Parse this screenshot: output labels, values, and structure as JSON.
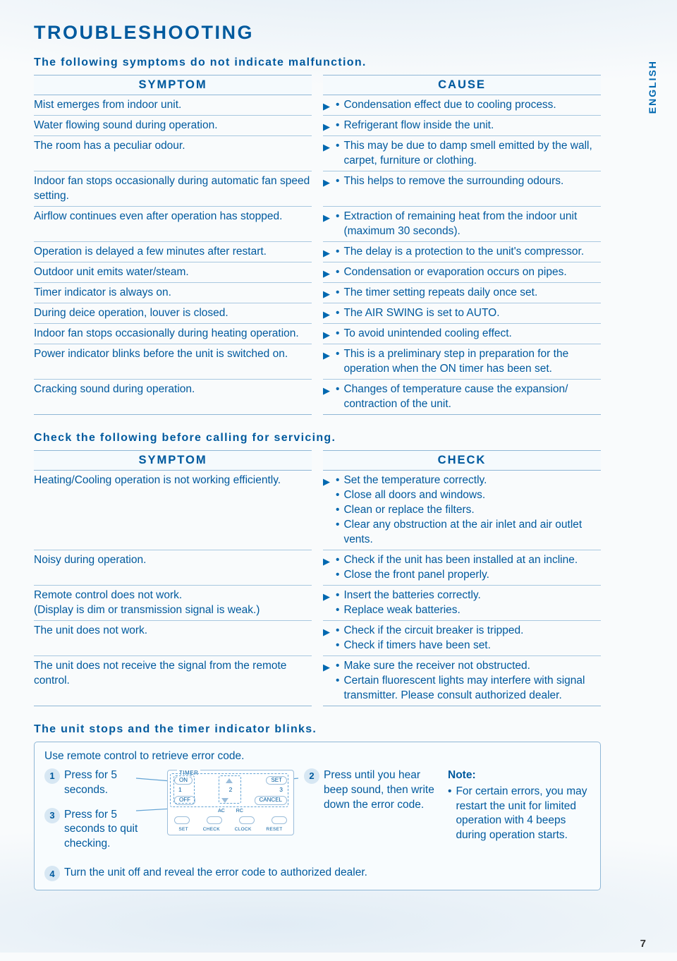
{
  "page": {
    "title": "TROUBLESHOOTING",
    "lang_tab": "ENGLISH",
    "page_number": "7"
  },
  "section1": {
    "subhead": "The following symptoms do not indicate malfunction.",
    "left_header": "SYMPTOM",
    "right_header": "CAUSE",
    "rows": [
      {
        "symptom": "Mist emerges from indoor unit.",
        "causes": [
          "Condensation effect due to cooling process."
        ]
      },
      {
        "symptom": "Water flowing sound during operation.",
        "causes": [
          "Refrigerant flow inside the unit."
        ]
      },
      {
        "symptom": "The room has a peculiar odour.",
        "causes": [
          "This may be due to damp smell emitted by the wall, carpet, furniture or clothing."
        ]
      },
      {
        "symptom": "Indoor fan stops occasionally during automatic fan speed setting.",
        "causes": [
          "This helps to remove the surrounding odours."
        ]
      },
      {
        "symptom": "Airflow continues even after operation has stopped.",
        "causes": [
          "Extraction of remaining heat from the indoor unit (maximum 30 seconds)."
        ]
      },
      {
        "symptom": "Operation is delayed a few minutes after restart.",
        "causes": [
          "The delay is a protection to the unit's compressor."
        ]
      },
      {
        "symptom": "Outdoor unit emits water/steam.",
        "causes": [
          "Condensation or evaporation occurs on pipes."
        ]
      },
      {
        "symptom": "Timer indicator is always on.",
        "causes": [
          "The timer setting repeats daily once set."
        ]
      },
      {
        "symptom": "During deice operation, louver is closed.",
        "causes": [
          "The AIR SWING is set to AUTO."
        ]
      },
      {
        "symptom": "Indoor fan stops occasionally during heating operation.",
        "causes": [
          "To avoid unintended cooling effect."
        ]
      },
      {
        "symptom": "Power indicator blinks before the unit is switched on.",
        "causes": [
          "This is a preliminary step in preparation for the operation when the ON timer has been set."
        ]
      },
      {
        "symptom": "Cracking sound during operation.",
        "causes": [
          "Changes of temperature cause the expansion/ contraction of the unit."
        ]
      }
    ]
  },
  "section2": {
    "subhead": "Check the following before calling for servicing.",
    "left_header": "SYMPTOM",
    "right_header": "CHECK",
    "rows": [
      {
        "symptom": "Heating/Cooling operation is not working efficiently.",
        "checks": [
          "Set the temperature correctly.",
          "Close all doors and windows.",
          "Clean or replace the filters.",
          "Clear any obstruction at the air inlet and air outlet vents."
        ]
      },
      {
        "symptom": "Noisy during operation.",
        "checks": [
          "Check if the unit has been installed at an incline.",
          "Close the front panel properly."
        ]
      },
      {
        "symptom": "Remote control does not work.\n(Display is dim or transmission signal is weak.)",
        "checks": [
          "Insert the batteries correctly.",
          "Replace weak batteries."
        ]
      },
      {
        "symptom": "The unit does not work.",
        "checks": [
          "Check if the circuit breaker is tripped.",
          "Check if timers have been set."
        ]
      },
      {
        "symptom": "The unit does not receive the signal from the remote control.",
        "checks": [
          "Make sure the receiver not obstructed.",
          "Certain fluorescent lights may interfere with signal transmitter. Please consult authorized dealer."
        ]
      }
    ]
  },
  "section3": {
    "subhead": "The unit stops and the timer indicator blinks.",
    "intro": "Use remote control to retrieve error code.",
    "step1": "Press for 5 seconds.",
    "step3": "Press for 5 seconds to quit checking.",
    "step2": "Press until you hear beep sound, then write down the error code.",
    "step4": "Turn the unit off and reveal the error code to authorized dealer.",
    "note_title": "Note:",
    "note_body": "For certain errors, you may restart the unit for limited operation with 4 beeps during operation starts.",
    "remote": {
      "timer": "TIMER",
      "on": "ON",
      "set": "SET",
      "n1": "1",
      "n2": "2",
      "n3": "3",
      "off": "OFF",
      "cancel": "CANCEL",
      "ac": "AC",
      "rc": "RC",
      "set_btn": "SET",
      "check": "CHECK",
      "clock": "CLOCK",
      "reset": "RESET"
    }
  },
  "colors": {
    "primary": "#005a9e",
    "rule": "#8fb7d6",
    "bg": "#f9fbfc"
  }
}
